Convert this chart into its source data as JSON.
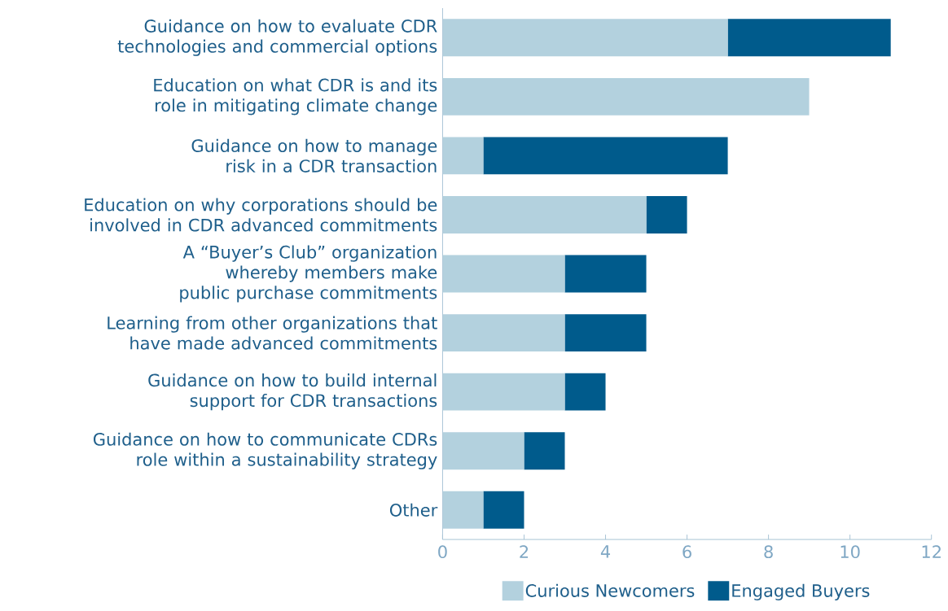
{
  "chart_data": {
    "type": "bar",
    "orientation": "horizontal",
    "stacked": true,
    "legend": "bottom",
    "categories": [
      "Guidance on how to evaluate CDR technologies and commercial options",
      "Education on what CDR is and its role in mitigating climate change",
      "Guidance on how to manage risk in a CDR transaction",
      "Education on why corporations should be involved in CDR advanced commitments",
      "A “Buyer’s Club” organization whereby members make public purchase commitments",
      "Learning from other organizations that have made advanced commitments",
      "Guidance on how to build internal support for CDR transactions",
      "Guidance on how to communicate CDRs role within a sustainability strategy",
      "Other"
    ],
    "series": [
      {
        "name": "Curious Newcomers",
        "color": "#b3d1de",
        "values": [
          7,
          9,
          1,
          5,
          3,
          3,
          3,
          2,
          1
        ]
      },
      {
        "name": "Engaged Buyers",
        "color": "#005b8c",
        "values": [
          4,
          0,
          6,
          1,
          2,
          2,
          1,
          1,
          1
        ]
      }
    ],
    "xlim": [
      0,
      12
    ],
    "xticks": [
      0,
      2,
      4,
      6,
      8,
      10,
      12
    ]
  }
}
